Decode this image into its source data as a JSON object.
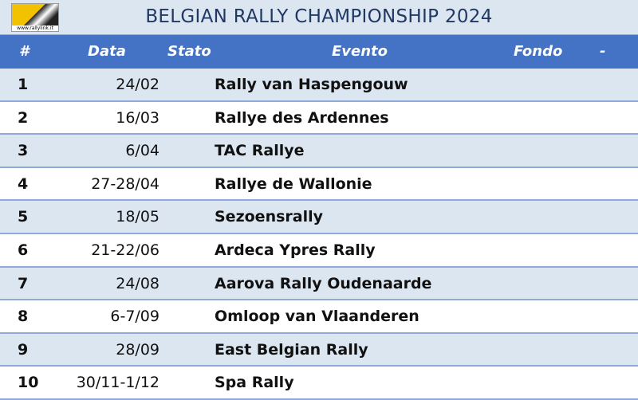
{
  "header": {
    "title": "BELGIAN RALLY CHAMPIONSHIP 2024",
    "logo": "www.rallylink.it"
  },
  "table": {
    "columns": [
      "#",
      "Data",
      "Stato",
      "Evento",
      "Fondo",
      "-"
    ],
    "rows": [
      [
        "1",
        "24/02",
        "Rally van Haspengouw"
      ],
      [
        "2",
        "16/03",
        "Rallye des Ardennes"
      ],
      [
        "3",
        "6/04",
        "TAC Rallye"
      ],
      [
        "4",
        "27-28/04",
        "Rallye de Wallonie"
      ],
      [
        "5",
        "18/05",
        "Sezoensrally"
      ],
      [
        "6",
        "21-22/06",
        "Ardeca Ypres Rally"
      ],
      [
        "7",
        "24/08",
        "Aarova Rally Oudenaarde"
      ],
      [
        "8",
        "6-7/09",
        "Omloop van Vlaanderen"
      ],
      [
        "9",
        "28/09",
        "East Belgian Rally"
      ],
      [
        "10",
        "30/11-1/12",
        "Spa Rally"
      ]
    ]
  }
}
